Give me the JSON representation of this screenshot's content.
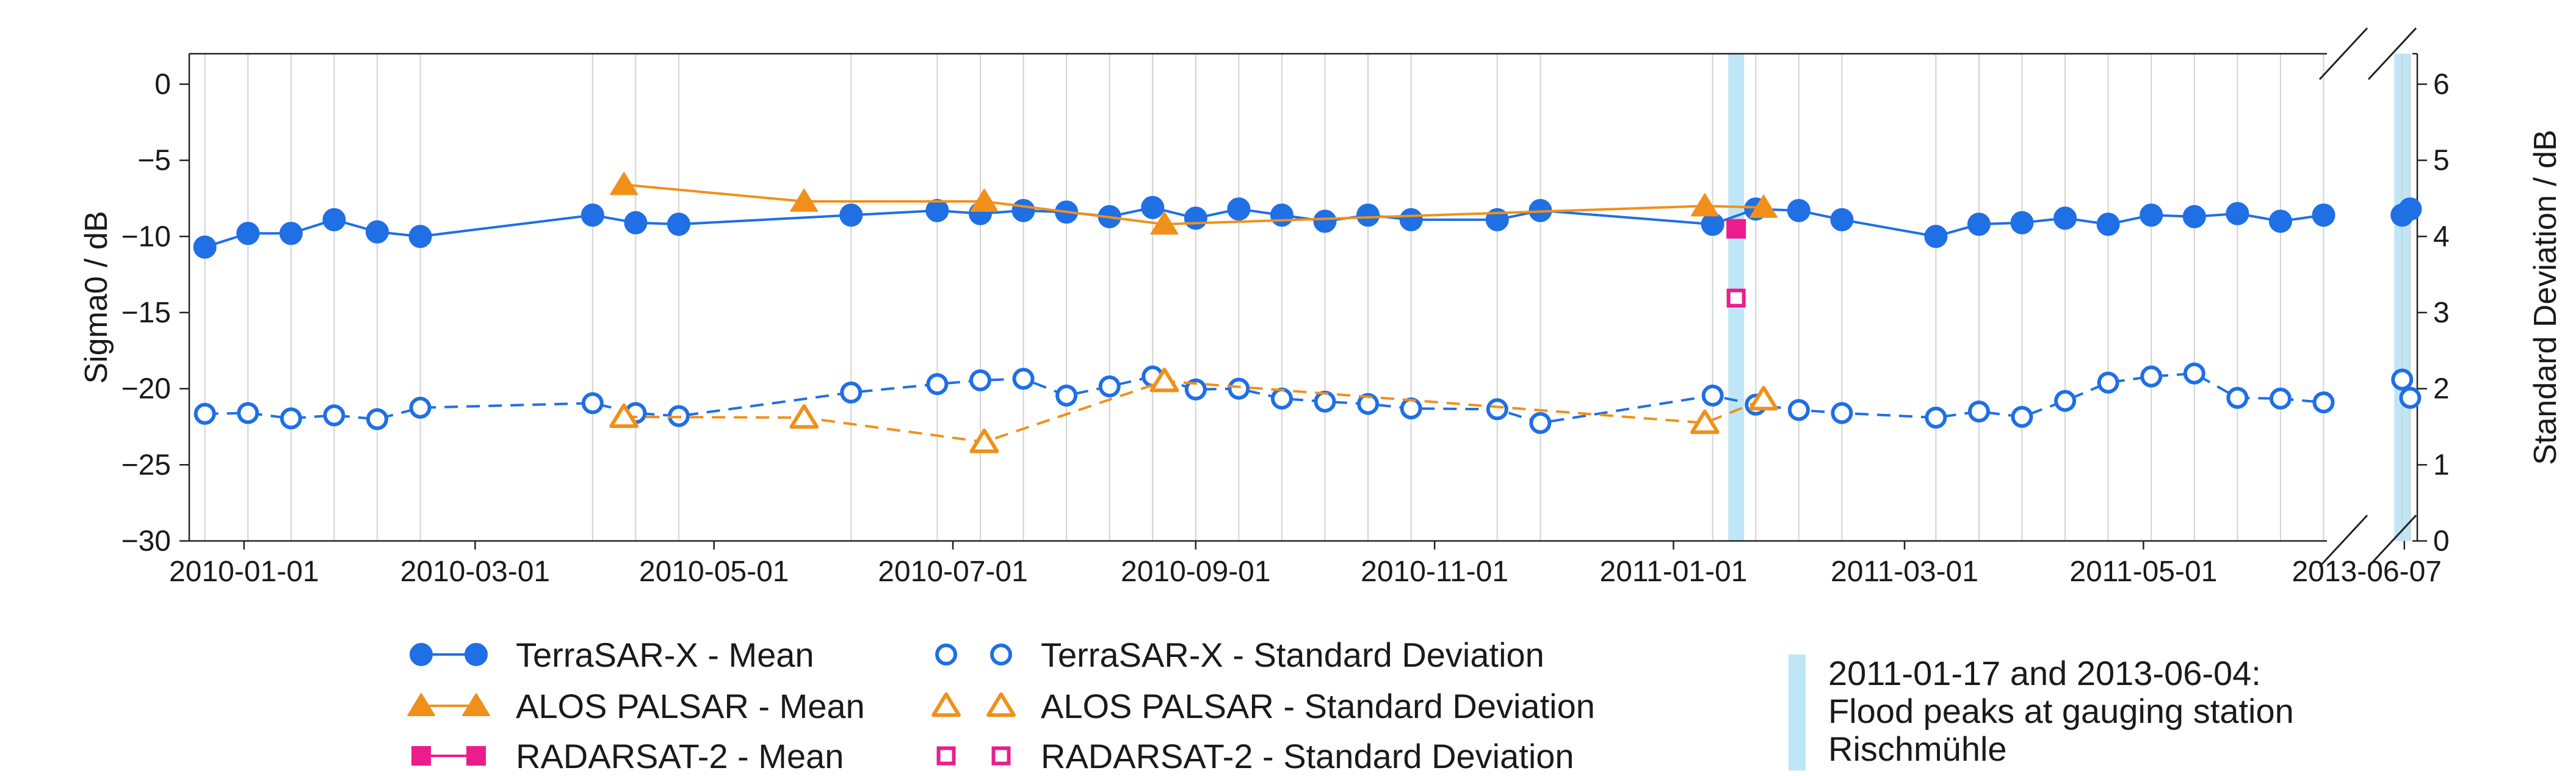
{
  "chart_data": {
    "type": "line",
    "xlabel": "",
    "ylabel_left": "Sigma0 / dB",
    "ylabel_right": "Standard Deviation / dB",
    "ylim_left": [
      -30,
      2
    ],
    "ylim_right": [
      0,
      6.4
    ],
    "yticks_left": [
      "0",
      "−5",
      "−10",
      "−15",
      "−20",
      "−25",
      "−30"
    ],
    "yticks_right": [
      "6",
      "5",
      "4",
      "3",
      "2",
      "1",
      "0"
    ],
    "x_tick_labels": [
      "2010-01-01",
      "2010-03-01",
      "2010-05-01",
      "2010-07-01",
      "2010-09-01",
      "2010-11-01",
      "2011-01-01",
      "2011-03-01",
      "2011-05-01",
      "2013-06-07"
    ],
    "axis_break_after": "2011-05-20",
    "flood_peaks": [
      "2011-01-17",
      "2013-06-04"
    ],
    "series": [
      {
        "name": "TerraSAR-X - Mean",
        "axis": "left",
        "color": "#1f6fe5",
        "marker": "circle-filled",
        "line": "solid",
        "x": [
          "2009-12-22",
          "2010-01-02",
          "2010-01-13",
          "2010-01-24",
          "2010-02-04",
          "2010-02-15",
          "2010-03-31",
          "2010-04-11",
          "2010-04-22",
          "2010-06-05",
          "2010-06-27",
          "2010-07-08",
          "2010-07-19",
          "2010-07-30",
          "2010-08-10",
          "2010-08-21",
          "2010-09-01",
          "2010-09-12",
          "2010-09-23",
          "2010-10-04",
          "2010-10-15",
          "2010-10-26",
          "2010-11-17",
          "2010-11-28",
          "2011-01-11",
          "2011-01-22",
          "2011-02-02",
          "2011-02-13",
          "2011-03-09",
          "2011-03-20",
          "2011-03-31",
          "2011-04-11",
          "2011-04-22",
          "2011-05-03",
          "2011-05-14",
          "2011-05-25",
          "2011-06-05",
          "2011-06-16",
          "2013-06-04",
          "2013-06-15"
        ],
        "values": [
          -10.7,
          -9.8,
          -9.8,
          -8.9,
          -9.7,
          -10.0,
          -8.6,
          -9.1,
          -9.2,
          -8.6,
          -8.3,
          -8.5,
          -8.3,
          -8.4,
          -8.7,
          -8.1,
          -8.8,
          -8.2,
          -8.6,
          -9.0,
          -8.6,
          -8.9,
          -8.9,
          -8.3,
          -9.2,
          -8.2,
          -8.3,
          -8.9,
          -10.0,
          -9.2,
          -9.1,
          -8.8,
          -9.2,
          -8.6,
          -8.7,
          -8.5,
          -9.0,
          -8.6,
          -8.6,
          -8.2
        ]
      },
      {
        "name": "ALOS PALSAR - Mean",
        "axis": "left",
        "color": "#f0901a",
        "marker": "triangle-filled",
        "line": "solid",
        "x": [
          "2010-04-08",
          "2010-05-24",
          "2010-07-09",
          "2010-08-24",
          "2011-01-09",
          "2011-01-24"
        ],
        "values": [
          -6.6,
          -7.7,
          -7.7,
          -9.2,
          -8.0,
          -8.1
        ]
      },
      {
        "name": "RADARSAT-2 - Mean",
        "axis": "left",
        "color": "#ec1c8e",
        "marker": "square-filled",
        "line": "solid",
        "x": [
          "2011-01-17"
        ],
        "values": [
          -9.5
        ]
      },
      {
        "name": "TerraSAR-X - Standard Deviation",
        "axis": "right",
        "color": "#1f6fe5",
        "marker": "circle-open",
        "line": "dashed",
        "x": [
          "2009-12-22",
          "2010-01-02",
          "2010-01-13",
          "2010-01-24",
          "2010-02-04",
          "2010-02-15",
          "2010-03-31",
          "2010-04-11",
          "2010-04-22",
          "2010-06-05",
          "2010-06-27",
          "2010-07-08",
          "2010-07-19",
          "2010-07-30",
          "2010-08-10",
          "2010-08-21",
          "2010-09-01",
          "2010-09-12",
          "2010-09-23",
          "2010-10-04",
          "2010-10-15",
          "2010-10-26",
          "2010-11-17",
          "2010-11-28",
          "2011-01-11",
          "2011-01-22",
          "2011-02-02",
          "2011-02-13",
          "2011-03-09",
          "2011-03-20",
          "2011-03-31",
          "2011-04-11",
          "2011-04-22",
          "2011-05-03",
          "2011-05-14",
          "2011-05-25",
          "2011-06-05",
          "2011-06-16",
          "2013-06-04",
          "2013-06-15"
        ],
        "values": [
          1.67,
          1.68,
          1.61,
          1.65,
          1.6,
          1.75,
          1.81,
          1.68,
          1.64,
          1.95,
          2.06,
          2.11,
          2.13,
          1.91,
          2.03,
          2.16,
          1.99,
          2.0,
          1.87,
          1.83,
          1.8,
          1.74,
          1.73,
          1.55,
          1.91,
          1.79,
          1.72,
          1.68,
          1.62,
          1.7,
          1.63,
          1.84,
          2.08,
          2.16,
          2.2,
          1.88,
          1.87,
          1.82,
          2.12,
          1.88
        ]
      },
      {
        "name": "ALOS PALSAR - Standard Deviation",
        "axis": "right",
        "color": "#f0901a",
        "marker": "triangle-open",
        "line": "dashed",
        "x": [
          "2010-04-08",
          "2010-05-24",
          "2010-07-09",
          "2010-08-24",
          "2011-01-09",
          "2011-01-24"
        ],
        "values": [
          1.63,
          1.62,
          1.3,
          2.1,
          1.55,
          1.86
        ]
      },
      {
        "name": "RADARSAT-2 - Standard Deviation",
        "axis": "right",
        "color": "#ec1c8e",
        "marker": "square-open",
        "line": "dashed",
        "x": [
          "2011-01-17"
        ],
        "values": [
          3.19
        ]
      }
    ],
    "legend": {
      "placement": "bottom",
      "entries": [
        {
          "label": "TerraSAR-X - Mean",
          "series": 0
        },
        {
          "label": "ALOS PALSAR - Mean",
          "series": 1
        },
        {
          "label": "RADARSAT-2 - Mean",
          "series": 2
        },
        {
          "label": "TerraSAR-X - Standard Deviation",
          "series": 3
        },
        {
          "label": "ALOS PALSAR - Standard Deviation",
          "series": 4
        },
        {
          "label": "RADARSAT-2 - Standard Deviation",
          "series": 5
        }
      ],
      "flood_note": [
        "2011-01-17 and 2013-06-04:",
        "Flood peaks at gauging station",
        "Rischmühle"
      ],
      "flood_color": "#bfe6f7"
    }
  }
}
